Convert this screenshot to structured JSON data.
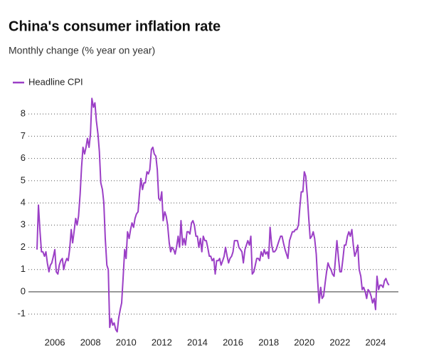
{
  "chart_data": {
    "type": "line",
    "title": "China's consumer inflation rate",
    "subtitle": "Monthly change (% year on year)",
    "x": [
      2005,
      2005.08,
      2005.17,
      2005.25,
      2005.33,
      2005.42,
      2005.5,
      2005.58,
      2005.67,
      2005.75,
      2005.83,
      2005.92,
      2006,
      2006.08,
      2006.17,
      2006.25,
      2006.33,
      2006.42,
      2006.5,
      2006.58,
      2006.67,
      2006.75,
      2006.83,
      2006.92,
      2007,
      2007.08,
      2007.17,
      2007.25,
      2007.33,
      2007.42,
      2007.5,
      2007.58,
      2007.67,
      2007.75,
      2007.83,
      2007.92,
      2008,
      2008.08,
      2008.17,
      2008.25,
      2008.33,
      2008.42,
      2008.5,
      2008.58,
      2008.67,
      2008.75,
      2008.83,
      2008.92,
      2009,
      2009.08,
      2009.17,
      2009.25,
      2009.33,
      2009.42,
      2009.5,
      2009.58,
      2009.67,
      2009.75,
      2009.83,
      2009.92,
      2010,
      2010.08,
      2010.17,
      2010.25,
      2010.33,
      2010.42,
      2010.5,
      2010.58,
      2010.67,
      2010.75,
      2010.83,
      2010.92,
      2011,
      2011.08,
      2011.17,
      2011.25,
      2011.33,
      2011.42,
      2011.5,
      2011.58,
      2011.67,
      2011.75,
      2011.83,
      2011.92,
      2012,
      2012.08,
      2012.17,
      2012.25,
      2012.33,
      2012.42,
      2012.5,
      2012.58,
      2012.67,
      2012.75,
      2012.83,
      2012.92,
      2013,
      2013.08,
      2013.17,
      2013.25,
      2013.33,
      2013.42,
      2013.5,
      2013.58,
      2013.67,
      2013.75,
      2013.83,
      2013.92,
      2014,
      2014.08,
      2014.17,
      2014.25,
      2014.33,
      2014.42,
      2014.5,
      2014.58,
      2014.67,
      2014.75,
      2014.83,
      2014.92,
      2015,
      2015.08,
      2015.17,
      2015.25,
      2015.33,
      2015.42,
      2015.5,
      2015.58,
      2015.67,
      2015.75,
      2015.83,
      2015.92,
      2016,
      2016.08,
      2016.17,
      2016.25,
      2016.33,
      2016.42,
      2016.5,
      2016.58,
      2016.67,
      2016.75,
      2016.83,
      2016.92,
      2017,
      2017.08,
      2017.17,
      2017.25,
      2017.33,
      2017.42,
      2017.5,
      2017.58,
      2017.67,
      2017.75,
      2017.83,
      2017.92,
      2018,
      2018.08,
      2018.17,
      2018.25,
      2018.33,
      2018.42,
      2018.5,
      2018.58,
      2018.67,
      2018.75,
      2018.83,
      2018.92,
      2019,
      2019.08,
      2019.17,
      2019.25,
      2019.33,
      2019.42,
      2019.5,
      2019.58,
      2019.67,
      2019.75,
      2019.83,
      2019.92,
      2020,
      2020.08,
      2020.17,
      2020.25,
      2020.33,
      2020.42,
      2020.5,
      2020.58,
      2020.67,
      2020.75,
      2020.83,
      2020.92,
      2021,
      2021.08,
      2021.17,
      2021.25,
      2021.33,
      2021.42,
      2021.5,
      2021.58,
      2021.67,
      2021.75,
      2021.83,
      2021.92,
      2022,
      2022.08,
      2022.17,
      2022.25,
      2022.33,
      2022.42,
      2022.5,
      2022.58,
      2022.67,
      2022.75,
      2022.83,
      2022.92,
      2023,
      2023.08,
      2023.17,
      2023.25,
      2023.33,
      2023.42,
      2023.5,
      2023.58,
      2023.67,
      2023.75,
      2023.83,
      2023.92,
      2024,
      2024.08,
      2024.17,
      2024.25,
      2024.33,
      2024.42,
      2024.5,
      2024.58,
      2024.67,
      2024.75
    ],
    "series": [
      {
        "name": "Headline CPI",
        "color": "#9b3fc6",
        "values": [
          1.9,
          3.9,
          2.7,
          1.8,
          1.8,
          1.6,
          1.8,
          1.3,
          0.9,
          1.2,
          1.3,
          1.6,
          1.9,
          0.9,
          0.8,
          1.2,
          1.4,
          1.5,
          1.0,
          1.3,
          1.5,
          1.4,
          1.9,
          2.8,
          2.2,
          2.7,
          3.3,
          3.0,
          3.4,
          4.4,
          5.6,
          6.5,
          6.2,
          6.5,
          6.9,
          6.5,
          7.1,
          8.7,
          8.3,
          8.5,
          7.7,
          7.1,
          6.3,
          4.9,
          4.6,
          4.0,
          2.4,
          1.2,
          1.0,
          -1.6,
          -1.2,
          -1.5,
          -1.4,
          -1.7,
          -1.8,
          -1.2,
          -0.8,
          -0.5,
          0.6,
          1.9,
          1.5,
          2.7,
          2.4,
          2.8,
          3.1,
          2.9,
          3.3,
          3.5,
          3.6,
          4.4,
          5.1,
          4.6,
          4.9,
          4.9,
          5.4,
          5.3,
          5.5,
          6.4,
          6.5,
          6.2,
          6.1,
          5.5,
          4.2,
          4.1,
          4.5,
          3.2,
          3.6,
          3.4,
          3.0,
          2.2,
          1.8,
          2.0,
          1.9,
          1.7,
          2.0,
          2.5,
          2.0,
          3.2,
          2.1,
          2.4,
          2.1,
          2.7,
          2.7,
          2.6,
          3.1,
          3.2,
          3.0,
          2.5,
          2.5,
          2.0,
          2.4,
          1.8,
          2.5,
          2.3,
          2.3,
          2.0,
          1.6,
          1.6,
          1.4,
          1.5,
          0.8,
          1.4,
          1.4,
          1.5,
          1.2,
          1.4,
          1.6,
          2.0,
          1.6,
          1.3,
          1.5,
          1.6,
          1.8,
          2.3,
          2.3,
          2.3,
          2.0,
          1.9,
          1.8,
          1.3,
          1.9,
          2.1,
          2.3,
          2.1,
          2.5,
          0.8,
          0.9,
          1.2,
          1.5,
          1.5,
          1.4,
          1.8,
          1.6,
          1.9,
          1.7,
          1.8,
          1.5,
          2.9,
          2.1,
          1.8,
          1.8,
          1.9,
          2.1,
          2.3,
          2.5,
          2.5,
          2.2,
          1.9,
          1.7,
          1.5,
          2.3,
          2.5,
          2.7,
          2.7,
          2.8,
          2.8,
          3.0,
          3.8,
          4.5,
          4.5,
          5.4,
          5.2,
          4.3,
          3.3,
          2.4,
          2.5,
          2.7,
          2.4,
          1.7,
          0.5,
          -0.5,
          0.2,
          -0.3,
          -0.2,
          0.4,
          0.9,
          1.3,
          1.1,
          1.0,
          0.8,
          0.7,
          1.5,
          2.3,
          1.5,
          0.9,
          0.9,
          1.5,
          2.1,
          2.1,
          2.5,
          2.7,
          2.5,
          2.8,
          2.1,
          1.6,
          1.8,
          2.1,
          1.0,
          0.7,
          0.1,
          0.2,
          0.0,
          -0.3,
          0.1,
          0.0,
          -0.2,
          -0.5,
          -0.3,
          -0.8,
          0.7,
          0.1,
          0.3,
          0.3,
          0.2,
          0.5,
          0.6,
          0.4,
          0.3
        ]
      }
    ],
    "xlim": [
      2004.52,
      2025.28
    ],
    "xticks": [
      2006,
      2008,
      2010,
      2012,
      2014,
      2016,
      2018,
      2020,
      2022,
      2024
    ],
    "ylim": [
      -1.76,
      8.74
    ],
    "yticks": [
      -1,
      0,
      1,
      2,
      3,
      4,
      5,
      6,
      7,
      8
    ],
    "grid": true,
    "legend": "top-left"
  }
}
